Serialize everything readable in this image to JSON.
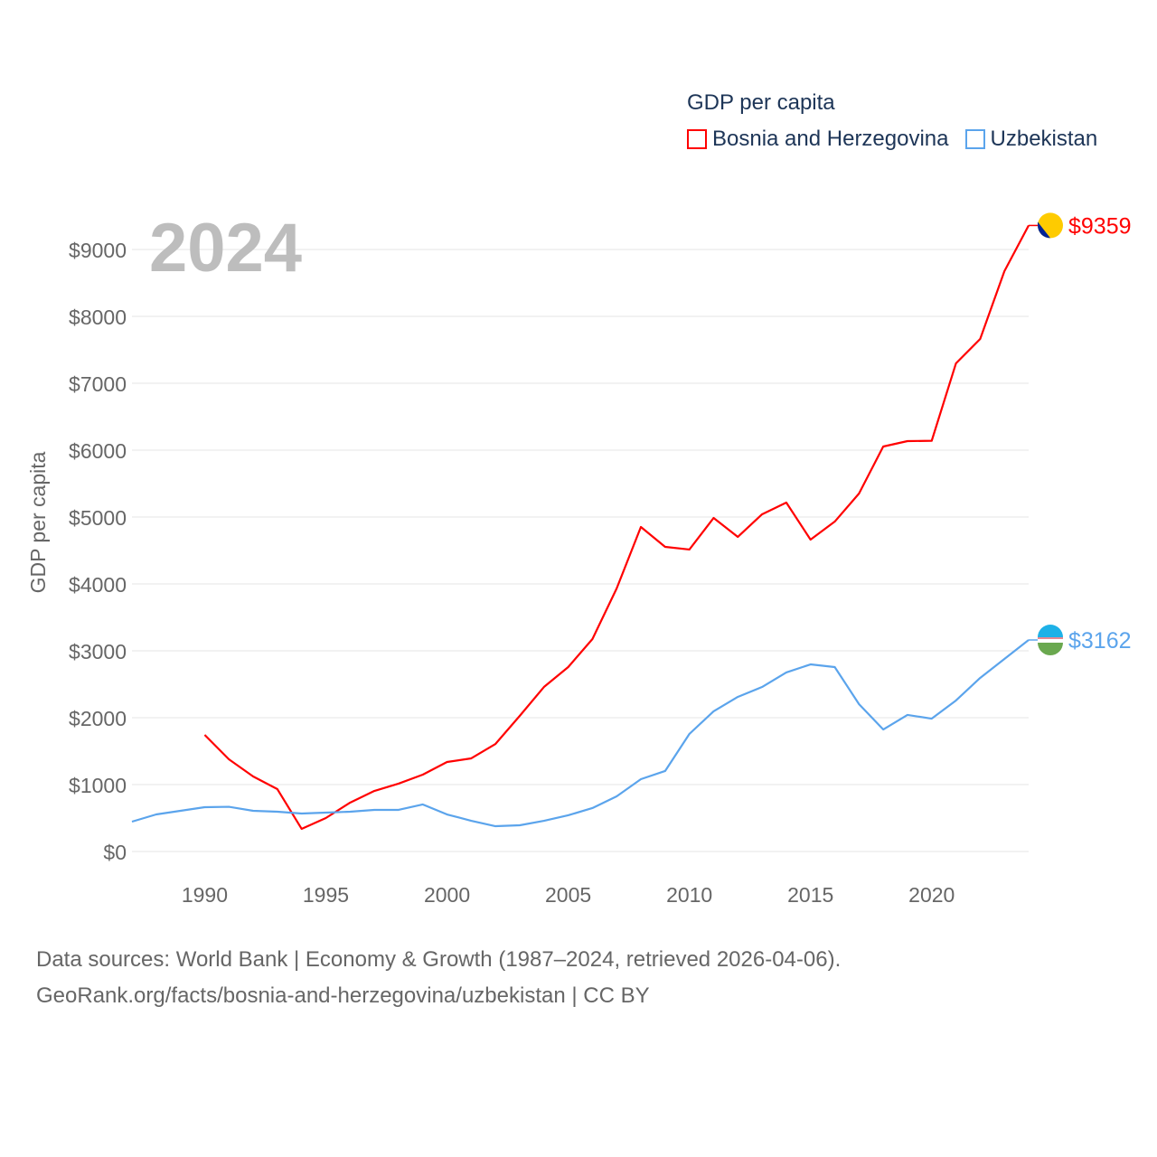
{
  "chart_data": {
    "type": "line",
    "title": "GDP per capita",
    "ylabel": "GDP per capita",
    "xlabel": "",
    "year_label": "2024",
    "ylim": [
      0,
      9000
    ],
    "xlim": [
      1987,
      2024
    ],
    "yticks": [
      0,
      1000,
      2000,
      3000,
      4000,
      5000,
      6000,
      7000,
      8000,
      9000
    ],
    "ytick_labels": [
      "$0",
      "$1000",
      "$2000",
      "$3000",
      "$4000",
      "$5000",
      "$6000",
      "$7000",
      "$8000",
      "$9000"
    ],
    "xticks": [
      1990,
      1995,
      2000,
      2005,
      2010,
      2015,
      2020
    ],
    "xtick_labels": [
      "1990",
      "1995",
      "2000",
      "2005",
      "2010",
      "2015",
      "2020"
    ],
    "grid": true,
    "legend_placement": "top-right",
    "series": [
      {
        "name": "Bosnia and Herzegovina",
        "color": "#ff0000",
        "end_label": "$9359",
        "x": [
          1990,
          1991,
          1992,
          1993,
          1994,
          1995,
          1996,
          1997,
          1998,
          1999,
          2000,
          2001,
          2002,
          2003,
          2004,
          2005,
          2006,
          2007,
          2008,
          2009,
          2010,
          2011,
          2012,
          2013,
          2014,
          2015,
          2016,
          2017,
          2018,
          2019,
          2020,
          2021,
          2022,
          2023,
          2024
        ],
        "values": [
          1743,
          1378,
          1122,
          932,
          338,
          500,
          730,
          905,
          1014,
          1149,
          1338,
          1392,
          1608,
          2027,
          2459,
          2757,
          3176,
          3932,
          4851,
          4554,
          4514,
          4986,
          4703,
          5041,
          5216,
          4662,
          4932,
          5351,
          6054,
          6135,
          6140,
          7297,
          7662,
          8676,
          9359
        ]
      },
      {
        "name": "Uzbekistan",
        "color": "#5ba4ec",
        "end_label": "$3162",
        "x": [
          1987,
          1988,
          1989,
          1990,
          1991,
          1992,
          1993,
          1994,
          1995,
          1996,
          1997,
          1998,
          1999,
          2000,
          2001,
          2002,
          2003,
          2004,
          2005,
          2006,
          2007,
          2008,
          2009,
          2010,
          2011,
          2012,
          2013,
          2014,
          2015,
          2016,
          2017,
          2018,
          2019,
          2020,
          2021,
          2022,
          2023,
          2024
        ],
        "values": [
          446,
          554,
          608,
          662,
          668,
          608,
          595,
          568,
          581,
          595,
          622,
          622,
          703,
          554,
          459,
          378,
          392,
          459,
          541,
          649,
          824,
          1081,
          1203,
          1757,
          2095,
          2311,
          2459,
          2676,
          2797,
          2757,
          2203,
          1824,
          2041,
          1986,
          2257,
          2595,
          2878,
          3162
        ]
      }
    ]
  },
  "footer": {
    "line1": "Data sources: World Bank | Economy & Growth (1987–2024, retrieved 2026-04-06).",
    "line2": "GeoRank.org/facts/bosnia-and-herzegovina/uzbekistan | CC BY"
  }
}
